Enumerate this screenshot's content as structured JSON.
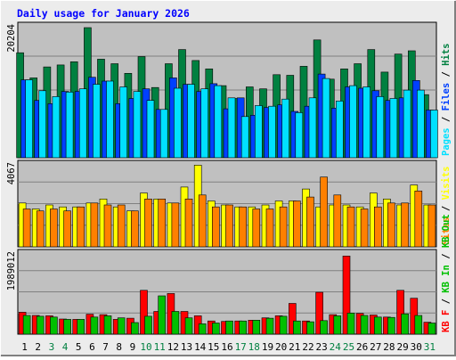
{
  "colors": {
    "frame_bg": "#ececec",
    "plot_bg": "#c0c0c0",
    "grid": "#808080",
    "title": "#0000ff",
    "hits": "#008040",
    "files": "#0040ff",
    "pages": "#00e0ff",
    "visits": "#ffff00",
    "sites": "#ff8000",
    "kbin": "#00c000",
    "kbout": "#ff0000",
    "weekend_day": "#008040"
  },
  "chart_data": {
    "type": "bar",
    "title": "Daily usage for January 2026",
    "x": [
      "1",
      "2",
      "3",
      "4",
      "5",
      "6",
      "7",
      "8",
      "9",
      "10",
      "11",
      "12",
      "13",
      "14",
      "15",
      "16",
      "17",
      "18",
      "19",
      "20",
      "21",
      "22",
      "23",
      "24",
      "25",
      "26",
      "27",
      "28",
      "29",
      "30",
      "31"
    ],
    "weekend_days": [
      "3",
      "4",
      "10",
      "11",
      "17",
      "18",
      "24",
      "25",
      "31"
    ],
    "panels": [
      {
        "id": "hits",
        "max_label": "20204",
        "ymax": 20204,
        "legend": [
          {
            "text": "Pages",
            "color": "#00e0ff"
          },
          {
            "text": "Files",
            "color": "#0040ff"
          },
          {
            "text": "Hits",
            "color": "#008040"
          }
        ],
        "legend_sep": " / ",
        "series": [
          {
            "name": "Hits",
            "color": "#008040",
            "values": [
              16300,
              12400,
              14100,
              14400,
              14900,
              20200,
              15300,
              14600,
              13100,
              15700,
              10900,
              14600,
              16800,
              15100,
              13800,
              11200,
              9200,
              11000,
              10700,
              12900,
              12800,
              14200,
              18300,
              12200,
              13800,
              14600,
              16800,
              13300,
              16100,
              16600,
              9800
            ]
          },
          {
            "name": "Files",
            "color": "#0040ff",
            "values": [
              12100,
              8900,
              8400,
              10300,
              10300,
              12500,
              11900,
              8400,
              9200,
              10700,
              7500,
              12400,
              11400,
              10300,
              11500,
              7600,
              9300,
              6600,
              7800,
              8200,
              7200,
              8000,
              13000,
              7700,
              11000,
              10800,
              10400,
              8900,
              9300,
              12000,
              7400
            ]
          },
          {
            "name": "Pages",
            "color": "#00e0ff",
            "values": [
              12100,
              10400,
              9500,
              10200,
              10700,
              11400,
              11900,
              11000,
              10300,
              8900,
              7500,
              10800,
              11400,
              10700,
              11200,
              9300,
              6400,
              8100,
              8000,
              9100,
              7000,
              9300,
              12300,
              8800,
              11200,
              11000,
              9500,
              9200,
              10500,
              10500,
              7400
            ]
          }
        ]
      },
      {
        "id": "visits",
        "max_label": "4067",
        "ymax": 4067,
        "legend": [
          {
            "text": "Sites",
            "color": "#ff8000"
          },
          {
            "text": "Visits",
            "color": "#ffff00"
          }
        ],
        "legend_sep": " / ",
        "series": [
          {
            "name": "Visits",
            "color": "#ffff00",
            "values": [
              2200,
              1900,
              2100,
              2000,
              2000,
              2200,
              2400,
              2000,
              1800,
              2700,
              2400,
              2200,
              3000,
              4100,
              2300,
              2100,
              2000,
              2000,
              2100,
              2300,
              2300,
              2900,
              2000,
              2100,
              2100,
              2000,
              2700,
              2400,
              2100,
              3100,
              2100
            ]
          },
          {
            "name": "Sites",
            "color": "#ff8000",
            "values": [
              1900,
              1800,
              1900,
              1800,
              2000,
              2200,
              2100,
              2100,
              1800,
              2400,
              2400,
              2200,
              2400,
              2600,
              2000,
              2100,
              2000,
              1900,
              1900,
              2000,
              2300,
              2500,
              3500,
              2600,
              2000,
              1900,
              2000,
              2200,
              2200,
              2800,
              2100
            ]
          }
        ]
      },
      {
        "id": "kbytes",
        "max_label": "1989012",
        "ymax": 1989012,
        "legend": [
          {
            "text": "KB F",
            "color": "#ff0000"
          },
          {
            "text": "KB In",
            "color": "#00c000"
          },
          {
            "text": "KB Out",
            "color": "#00c000"
          }
        ],
        "legend_sep": " / ",
        "series": [
          {
            "name": "KB F",
            "color": "#ff0000",
            "values": [
              550000,
              470000,
              460000,
              380000,
              370000,
              500000,
              490000,
              370000,
              400000,
              1100000,
              570000,
              1020000,
              570000,
              460000,
              330000,
              320000,
              330000,
              350000,
              410000,
              460000,
              770000,
              330000,
              1050000,
              490000,
              1960000,
              520000,
              480000,
              430000,
              1100000,
              900000,
              300000
            ]
          },
          {
            "name": "KB In",
            "color": "#00c000",
            "values": [
              470000,
              450000,
              430000,
              370000,
              370000,
              430000,
              460000,
              410000,
              290000,
              450000,
              960000,
              570000,
              410000,
              260000,
              280000,
              330000,
              330000,
              350000,
              400000,
              450000,
              330000,
              310000,
              340000,
              460000,
              530000,
              470000,
              430000,
              420000,
              510000,
              470000,
              280000
            ]
          }
        ]
      }
    ]
  }
}
